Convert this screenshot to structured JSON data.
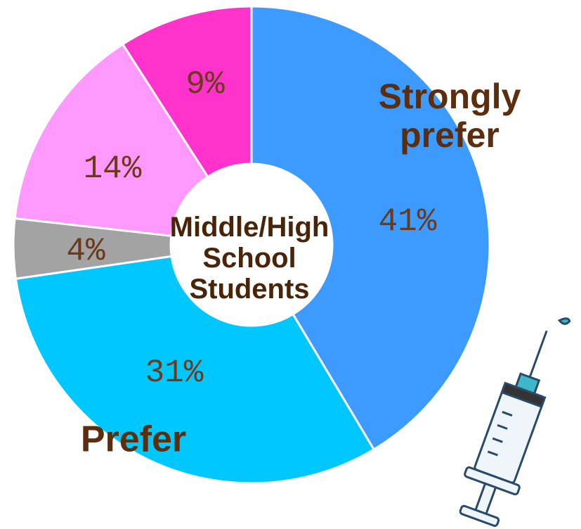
{
  "chart_data": {
    "type": "donut",
    "center_label": "Middle/High School Students",
    "categories": [
      "Strongly prefer",
      "Prefer",
      null,
      null,
      null
    ],
    "values": [
      41,
      31,
      4,
      14,
      9
    ],
    "value_labels": [
      "41%",
      "31%",
      "4%",
      "14%",
      "9%"
    ],
    "colors": [
      "#3d9bff",
      "#00c8ff",
      "#a3a3a3",
      "#ff99ff",
      "#ff33cc"
    ]
  }
}
